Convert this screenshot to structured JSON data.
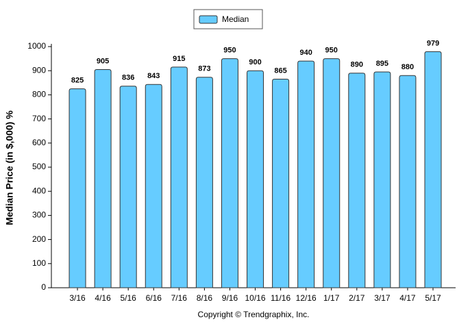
{
  "chart_data": {
    "type": "bar",
    "y_label": "Median Price (in $,000) %",
    "annotation": "Copyright © Trendgraphix, Inc.",
    "categories": [
      "3/16",
      "4/16",
      "5/16",
      "6/16",
      "7/16",
      "8/16",
      "9/16",
      "10/16",
      "11/16",
      "12/16",
      "1/17",
      "2/17",
      "3/17",
      "4/17",
      "5/17"
    ],
    "series": [
      {
        "name": "Median",
        "color": "#66ccff",
        "values": [
          825,
          905,
          836,
          843,
          915,
          873,
          950,
          900,
          865,
          940,
          950,
          890,
          895,
          880,
          979
        ]
      }
    ],
    "ylim": [
      0,
      1000
    ],
    "yticks": [
      0,
      100,
      200,
      300,
      400,
      500,
      600,
      700,
      800,
      900,
      1000
    ],
    "legend": "top"
  }
}
